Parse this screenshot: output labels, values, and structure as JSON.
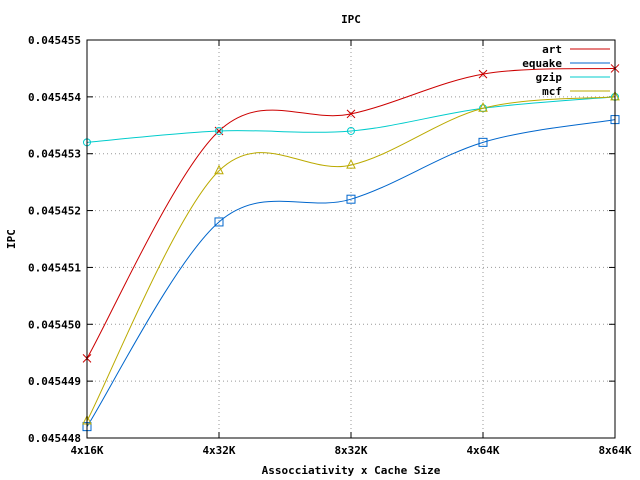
{
  "chart_data": {
    "type": "line",
    "title": "IPC",
    "xlabel": "Assocciativity x Cache Size",
    "ylabel": "IPC",
    "categories": [
      "4x16K",
      "4x32K",
      "8x32K",
      "4x64K",
      "8x64K"
    ],
    "yticks": [
      "0.045448",
      "0.045449",
      "0.045450",
      "0.045451",
      "0.045452",
      "0.045453",
      "0.045454",
      "0.045455"
    ],
    "ylim": [
      0.045448,
      0.045455
    ],
    "grid": true,
    "legend_position": "top-right",
    "series": [
      {
        "name": "art",
        "color": "#cc0000",
        "marker": "x",
        "values": [
          0.0454494,
          0.0454534,
          0.0454537,
          0.0454544,
          0.0454545
        ]
      },
      {
        "name": "equake",
        "color": "#0066cc",
        "marker": "square",
        "values": [
          0.0454482,
          0.0454518,
          0.0454522,
          0.0454532,
          0.0454536
        ]
      },
      {
        "name": "gzip",
        "color": "#00cccc",
        "marker": "circle",
        "values": [
          0.0454532,
          0.0454534,
          0.0454534,
          0.0454538,
          0.045454
        ]
      },
      {
        "name": "mcf",
        "color": "#bbaa00",
        "marker": "triangle",
        "values": [
          0.0454483,
          0.0454527,
          0.0454528,
          0.0454538,
          0.045454
        ]
      }
    ]
  }
}
